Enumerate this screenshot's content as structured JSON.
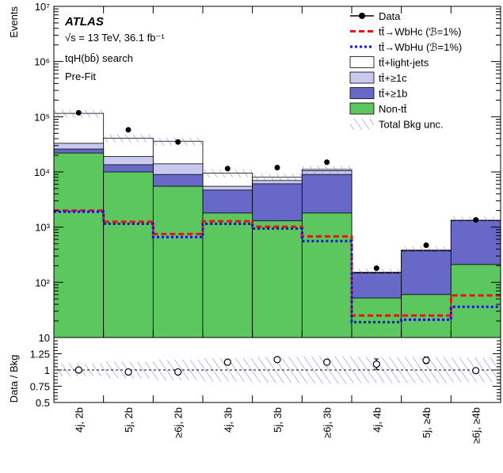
{
  "chart_data": {
    "type": "bar",
    "stacked": true,
    "style": "step-histogram",
    "categories": [
      "4j, 2b",
      "5j, 2b",
      "≥6j, 2b",
      "4j, 3b",
      "5j, 3b",
      "≥6j, 3b",
      "4j, 4b",
      "5j, ≥4b",
      "≥6j, ≥4b"
    ],
    "main": {
      "ylabel": "Events",
      "yscale": "log",
      "ylim": [
        10,
        10000000
      ],
      "yticks": [
        "10",
        "10²",
        "10³",
        "10⁴",
        "10⁵",
        "10⁶",
        "10⁷"
      ],
      "atlas_label": "ATLAS",
      "energy_text": "√s = 13 TeV, 36.1 fb⁻¹",
      "search_text": "tqH(bb̄) search",
      "fit_text": "Pre-Fit",
      "stack": [
        {
          "name": "Non-tt̄",
          "color": "#5dc75f",
          "values": [
            22000,
            10000,
            5500,
            1800,
            1300,
            1800,
            52,
            60,
            210
          ]
        },
        {
          "name": "tt̄+≥1b",
          "color": "#6868c8",
          "values": [
            4000,
            3500,
            3500,
            2900,
            4800,
            7200,
            95,
            310,
            1100
          ]
        },
        {
          "name": "tt̄+≥1c",
          "color": "#c8c8f0",
          "values": [
            7000,
            5500,
            5000,
            800,
            900,
            1500,
            3,
            10,
            15
          ]
        },
        {
          "name": "tt̄+light-jets",
          "color": "#ffffff",
          "values": [
            82000,
            22000,
            22000,
            4000,
            1000,
            600,
            2,
            3,
            5
          ]
        }
      ],
      "total_unc_fraction": 0.16,
      "signals": [
        {
          "name": "tt̄→WbHc (ℬ=1%)",
          "color": "#ee1111",
          "dash": "7,4",
          "values": [
            2000,
            1250,
            750,
            1280,
            1020,
            680,
            25,
            25,
            58
          ]
        },
        {
          "name": "tt̄→WbHu (ℬ=1%)",
          "color": "#1111dd",
          "dash": "3,3",
          "values": [
            1900,
            1150,
            660,
            1150,
            940,
            560,
            19,
            21,
            36
          ]
        }
      ],
      "data": {
        "name": "Data",
        "values": [
          118000,
          58000,
          35000,
          11500,
          12000,
          15000,
          180,
          470,
          1350
        ]
      }
    },
    "ratio": {
      "ylabel": "Data / Bkg",
      "ylim": [
        0.5,
        1.5
      ],
      "yticks": [
        "0.5",
        "0.75",
        "1",
        "1.25"
      ],
      "values": [
        1.0,
        0.97,
        0.97,
        1.12,
        1.16,
        1.12,
        1.09,
        1.15,
        0.99
      ],
      "errors": [
        0.005,
        0.005,
        0.006,
        0.01,
        0.01,
        0.009,
        0.08,
        0.05,
        0.03
      ],
      "unc_fraction": [
        0.1,
        0.13,
        0.16,
        0.18,
        0.2,
        0.21,
        0.2,
        0.2,
        0.19
      ]
    },
    "legend": {
      "placement": "top-right",
      "entries": [
        {
          "key": "data",
          "label": "Data"
        },
        {
          "key": "sig1",
          "label": "tt̄→WbHc (ℬ=1%)"
        },
        {
          "key": "sig2",
          "label": "tt̄→WbHu (ℬ=1%)"
        },
        {
          "key": "light",
          "label": "tt̄+light-jets"
        },
        {
          "key": "c",
          "label": "tt̄+≥1c"
        },
        {
          "key": "b",
          "label": "tt̄+≥1b"
        },
        {
          "key": "nontt",
          "label": "Non-tt̄"
        },
        {
          "key": "unc",
          "label": "Total Bkg unc."
        }
      ]
    }
  }
}
